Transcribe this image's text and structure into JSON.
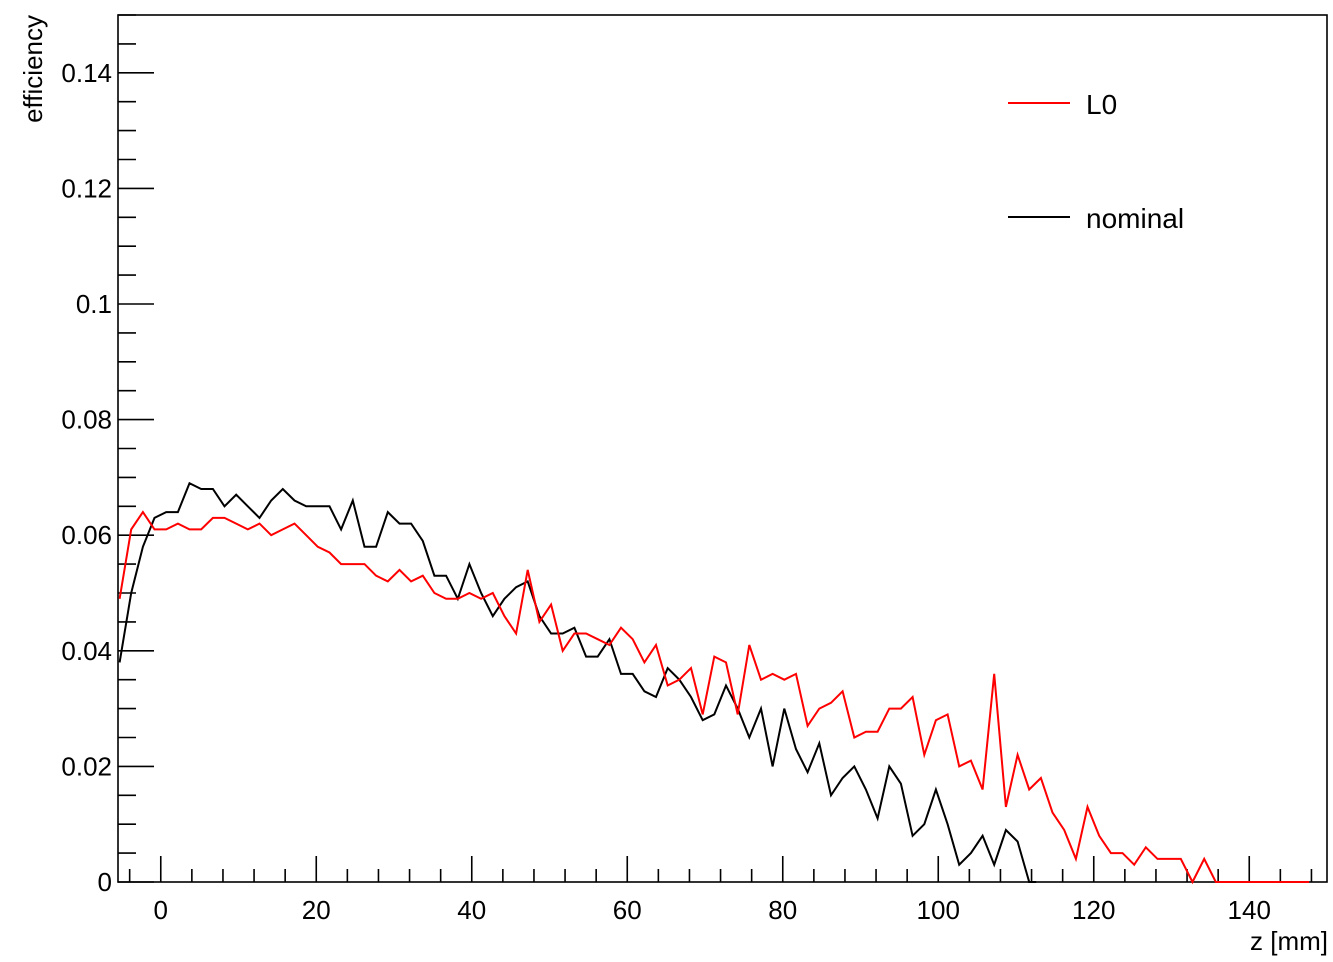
{
  "chart_data": {
    "type": "line",
    "xlabel": "z [mm]",
    "ylabel": "efficiency",
    "xlim": [
      -5.5,
      150
    ],
    "ylim": [
      0,
      0.15
    ],
    "x_ticks": [
      0,
      20,
      40,
      60,
      80,
      100,
      120,
      140
    ],
    "x_tick_labels": [
      "0",
      "20",
      "40",
      "60",
      "80",
      "100",
      "120",
      "140"
    ],
    "y_ticks": [
      0,
      0.02,
      0.04,
      0.06,
      0.08,
      0.1,
      0.12,
      0.14
    ],
    "y_tick_labels": [
      "0",
      "0.02",
      "0.04",
      "0.06",
      "0.08",
      "0.1",
      "0.12",
      "0.14"
    ],
    "grid": false,
    "legend": "top-right",
    "series": [
      {
        "name": "L0",
        "color": "#ff0000",
        "x": [
          -5.3,
          -3.8,
          -2.3,
          -0.8,
          0.7,
          2.2,
          3.7,
          5.2,
          6.7,
          8.2,
          9.7,
          11.2,
          12.7,
          14.2,
          15.7,
          17.2,
          18.7,
          20.2,
          21.7,
          23.2,
          24.7,
          26.2,
          27.7,
          29.2,
          30.7,
          32.2,
          33.7,
          35.2,
          36.7,
          38.2,
          39.7,
          41.2,
          42.7,
          44.2,
          45.7,
          47.2,
          48.7,
          50.2,
          51.7,
          53.2,
          54.7,
          56.2,
          57.7,
          59.2,
          60.7,
          62.2,
          63.7,
          65.2,
          66.7,
          68.2,
          69.7,
          71.2,
          72.7,
          74.2,
          75.7,
          77.2,
          78.7,
          80.2,
          81.7,
          83.2,
          84.7,
          86.2,
          87.7,
          89.2,
          90.7,
          92.2,
          93.7,
          95.2,
          96.7,
          98.2,
          99.7,
          101.2,
          102.7,
          104.2,
          105.7,
          107.2,
          108.7,
          110.2,
          111.7,
          113.2,
          114.7,
          116.2,
          117.7,
          119.2,
          120.7,
          122.2,
          123.7,
          125.2,
          126.7,
          128.2,
          129.7,
          131.2,
          132.7,
          134.2,
          135.7,
          137.2,
          138.7,
          140.2,
          141.7,
          143.2,
          144.7,
          146.2,
          147.7
        ],
        "values": [
          0.049,
          0.061,
          0.064,
          0.061,
          0.061,
          0.062,
          0.061,
          0.061,
          0.063,
          0.063,
          0.062,
          0.061,
          0.062,
          0.06,
          0.061,
          0.062,
          0.06,
          0.058,
          0.057,
          0.055,
          0.055,
          0.055,
          0.053,
          0.052,
          0.054,
          0.052,
          0.053,
          0.05,
          0.049,
          0.049,
          0.05,
          0.049,
          0.05,
          0.046,
          0.043,
          0.054,
          0.045,
          0.048,
          0.04,
          0.043,
          0.043,
          0.042,
          0.041,
          0.044,
          0.042,
          0.038,
          0.041,
          0.034,
          0.035,
          0.037,
          0.029,
          0.039,
          0.038,
          0.029,
          0.041,
          0.035,
          0.036,
          0.035,
          0.036,
          0.027,
          0.03,
          0.031,
          0.033,
          0.025,
          0.026,
          0.026,
          0.03,
          0.03,
          0.032,
          0.022,
          0.028,
          0.029,
          0.02,
          0.021,
          0.016,
          0.036,
          0.013,
          0.022,
          0.016,
          0.018,
          0.012,
          0.009,
          0.004,
          0.013,
          0.008,
          0.005,
          0.005,
          0.003,
          0.006,
          0.004,
          0.004,
          0.004,
          0.0,
          0.004,
          0.0,
          0.0,
          0.0,
          0.0,
          0.0,
          0.0,
          0.0,
          0.0,
          0.0
        ]
      },
      {
        "name": "nominal",
        "color": "#000000",
        "x": [
          -5.3,
          -3.8,
          -2.3,
          -0.8,
          0.7,
          2.2,
          3.7,
          5.2,
          6.7,
          8.2,
          9.7,
          11.2,
          12.7,
          14.2,
          15.7,
          17.2,
          18.7,
          20.2,
          21.7,
          23.2,
          24.7,
          26.2,
          27.7,
          29.2,
          30.7,
          32.2,
          33.7,
          35.2,
          36.7,
          38.2,
          39.7,
          41.2,
          42.7,
          44.2,
          45.7,
          47.2,
          48.7,
          50.2,
          51.7,
          53.2,
          54.7,
          56.2,
          57.7,
          59.2,
          60.7,
          62.2,
          63.7,
          65.2,
          66.7,
          68.2,
          69.7,
          71.2,
          72.7,
          74.2,
          75.7,
          77.2,
          78.7,
          80.2,
          81.7,
          83.2,
          84.7,
          86.2,
          87.7,
          89.2,
          90.7,
          92.2,
          93.7,
          95.2,
          96.7,
          98.2,
          99.7,
          101.2,
          102.7,
          104.2,
          105.7,
          107.2,
          108.7,
          110.2,
          111.7,
          112.6
        ],
        "values": [
          0.038,
          0.05,
          0.058,
          0.063,
          0.064,
          0.064,
          0.069,
          0.068,
          0.068,
          0.065,
          0.067,
          0.065,
          0.063,
          0.066,
          0.068,
          0.066,
          0.065,
          0.065,
          0.065,
          0.061,
          0.066,
          0.058,
          0.058,
          0.064,
          0.062,
          0.062,
          0.059,
          0.053,
          0.053,
          0.049,
          0.055,
          0.05,
          0.046,
          0.049,
          0.051,
          0.052,
          0.046,
          0.043,
          0.043,
          0.044,
          0.039,
          0.039,
          0.042,
          0.036,
          0.036,
          0.033,
          0.032,
          0.037,
          0.035,
          0.032,
          0.028,
          0.029,
          0.034,
          0.03,
          0.025,
          0.03,
          0.02,
          0.03,
          0.023,
          0.019,
          0.024,
          0.015,
          0.018,
          0.02,
          0.016,
          0.011,
          0.02,
          0.017,
          0.008,
          0.01,
          0.016,
          0.01,
          0.003,
          0.005,
          0.008,
          0.003,
          0.009,
          0.007,
          0.0,
          0.0
        ]
      }
    ]
  }
}
